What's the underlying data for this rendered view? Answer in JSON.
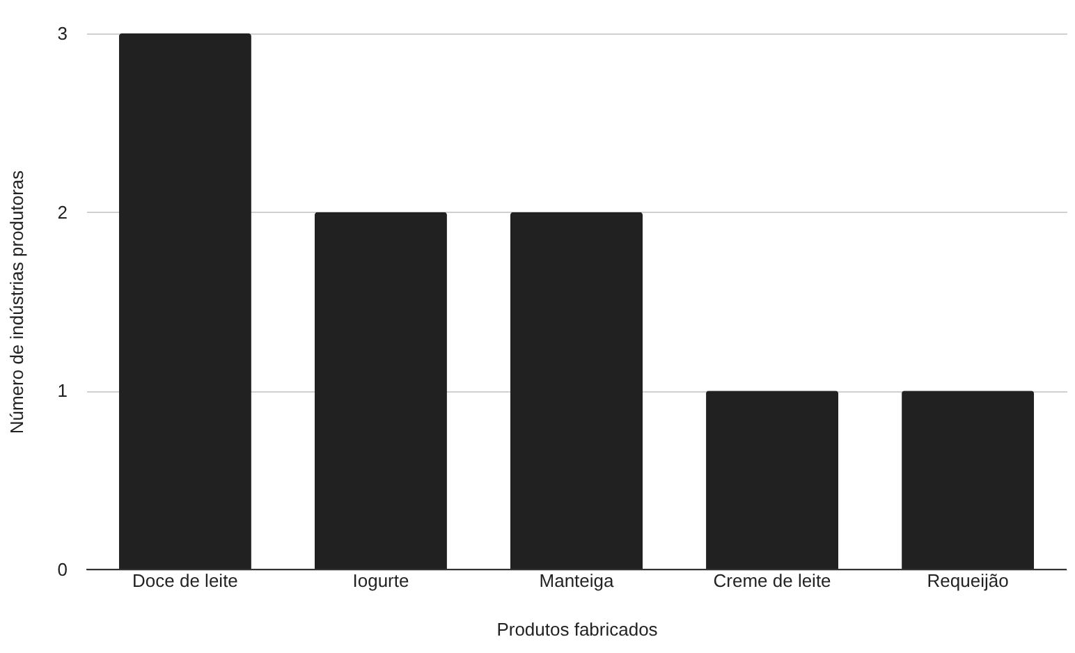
{
  "chart_data": {
    "type": "bar",
    "xlabel": "Produtos fabricados",
    "ylabel": "Número de indústrias produtoras",
    "categories": [
      "Doce de leite",
      "Iogurte",
      "Manteiga",
      "Creme de leite",
      "Requeijão"
    ],
    "values": [
      3,
      2,
      2,
      1,
      1
    ],
    "color": "#212121",
    "ylim": [
      0,
      3
    ],
    "yticks": [
      0,
      1,
      2,
      3
    ],
    "grid": "y"
  }
}
